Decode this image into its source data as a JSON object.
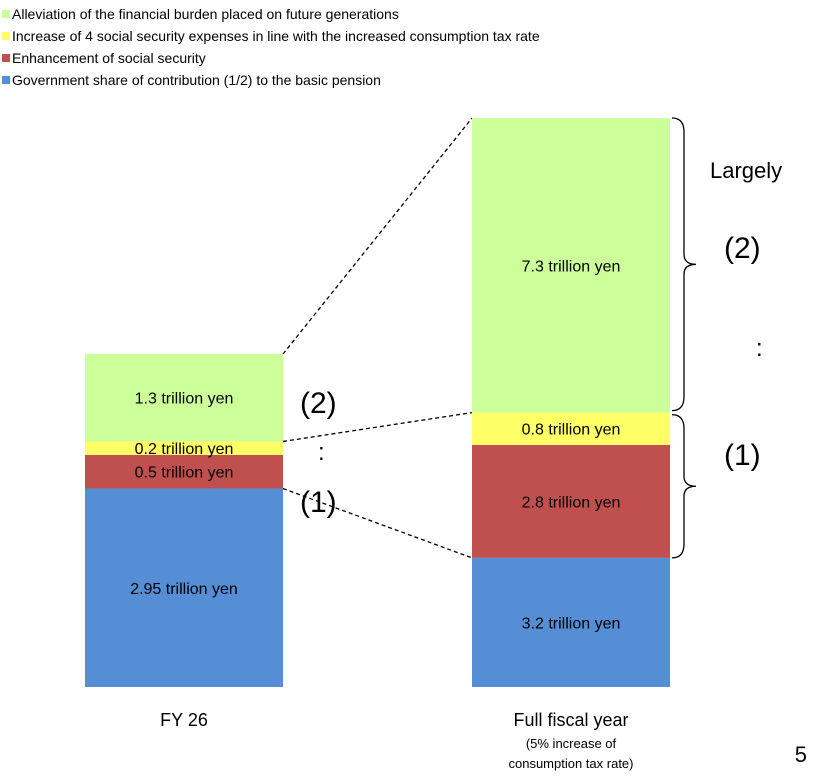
{
  "chart_data": {
    "type": "bar",
    "stacked": true,
    "categories": [
      "FY 26",
      "Full fiscal year"
    ],
    "category_notes": [
      "",
      "(5% increase of consumption tax rate)"
    ],
    "series": [
      {
        "name": "Government share of contribution (1/2) to the basic pension",
        "color": "#558ed5",
        "values": [
          2.95,
          3.2
        ],
        "labels": [
          "2.95 trillion yen",
          "3.2 trillion yen"
        ]
      },
      {
        "name": "Enhancement of social security",
        "color": "#c0504d",
        "values": [
          0.5,
          2.8
        ],
        "labels": [
          "0.5 trillion yen",
          "2.8 trillion yen"
        ]
      },
      {
        "name": "Increase of 4 social security expenses in line with the increased consumption tax rate",
        "color": "#ffff66",
        "values": [
          0.2,
          0.8
        ],
        "labels": [
          "0.2 trillion yen",
          "0.8 trillion yen"
        ]
      },
      {
        "name": "Alleviation of the financial burden placed on future generations",
        "color": "#ccff99",
        "values": [
          1.3,
          7.3
        ],
        "labels": [
          "1.3 trillion yen",
          "7.3 trillion yen"
        ]
      }
    ],
    "legend_order": [
      3,
      2,
      1,
      0
    ],
    "legend_position": "top-left",
    "grid": false
  },
  "annotations": {
    "fy26_marker_2": "(2)",
    "fy26_marker_colon": ":",
    "fy26_marker_1": "(1)",
    "full_largely": "Largely",
    "full_marker_2": "(2)",
    "full_marker_colon": ":",
    "full_marker_1": "(1)"
  },
  "page_number": "5"
}
